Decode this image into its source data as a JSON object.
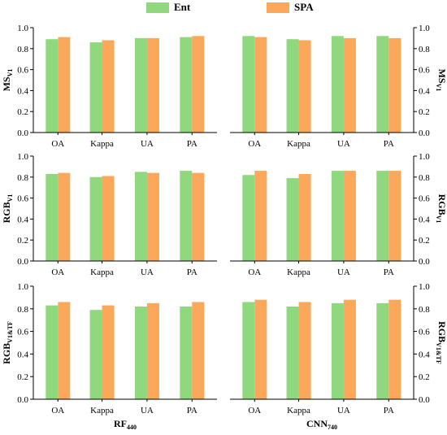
{
  "legend": {
    "ent": "Ent",
    "spa": "SPA"
  },
  "colors": {
    "ent": "#90d87e",
    "spa": "#fba85a",
    "axis": "#000000",
    "grid": "#bdbdbd"
  },
  "chart_data": {
    "type": "bar",
    "categories": [
      "OA",
      "Kappa",
      "UA",
      "PA"
    ],
    "ylim": [
      0,
      1.0
    ],
    "yticks": [
      "0.0",
      "0.2",
      "0.4",
      "0.6",
      "0.8",
      "1.0"
    ],
    "series_names": [
      "Ent",
      "SPA"
    ],
    "columns": [
      {
        "label_main": "RF",
        "label_sub": "440"
      },
      {
        "label_main": "CNN",
        "label_sub": "740"
      }
    ],
    "rows": [
      {
        "label_main": "MS",
        "label_sub": "V1"
      },
      {
        "label_main": "RGB",
        "label_sub": "V1"
      },
      {
        "label_main": "RGB",
        "label_sub": "V1&TF"
      }
    ],
    "panels": [
      {
        "row": 0,
        "col": 0,
        "series": [
          {
            "name": "Ent",
            "values": [
              0.89,
              0.86,
              0.9,
              0.91
            ]
          },
          {
            "name": "SPA",
            "values": [
              0.91,
              0.88,
              0.9,
              0.92
            ]
          }
        ]
      },
      {
        "row": 0,
        "col": 1,
        "series": [
          {
            "name": "Ent",
            "values": [
              0.92,
              0.89,
              0.92,
              0.92
            ]
          },
          {
            "name": "SPA",
            "values": [
              0.91,
              0.88,
              0.9,
              0.9
            ]
          }
        ]
      },
      {
        "row": 1,
        "col": 0,
        "series": [
          {
            "name": "Ent",
            "values": [
              0.83,
              0.8,
              0.85,
              0.86
            ]
          },
          {
            "name": "SPA",
            "values": [
              0.84,
              0.81,
              0.84,
              0.84
            ]
          }
        ]
      },
      {
        "row": 1,
        "col": 1,
        "series": [
          {
            "name": "Ent",
            "values": [
              0.82,
              0.79,
              0.86,
              0.86
            ]
          },
          {
            "name": "SPA",
            "values": [
              0.86,
              0.83,
              0.86,
              0.86
            ]
          }
        ]
      },
      {
        "row": 2,
        "col": 0,
        "series": [
          {
            "name": "Ent",
            "values": [
              0.83,
              0.79,
              0.82,
              0.82
            ]
          },
          {
            "name": "SPA",
            "values": [
              0.86,
              0.83,
              0.85,
              0.86
            ]
          }
        ]
      },
      {
        "row": 2,
        "col": 1,
        "series": [
          {
            "name": "Ent",
            "values": [
              0.86,
              0.82,
              0.85,
              0.85
            ]
          },
          {
            "name": "SPA",
            "values": [
              0.88,
              0.86,
              0.88,
              0.88
            ]
          }
        ]
      }
    ]
  }
}
